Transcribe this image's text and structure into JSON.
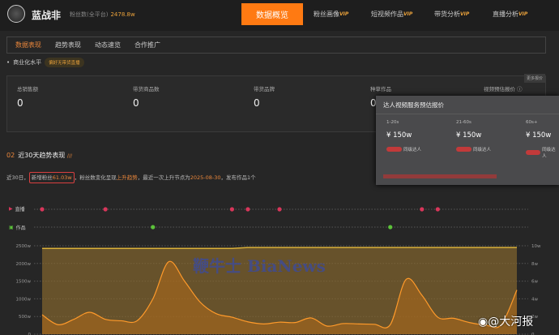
{
  "header": {
    "name": "蓝战非",
    "fans_label": "粉丝数(全平台)",
    "fans_value": "2478.8w",
    "nav": [
      {
        "label": "数据概览"
      },
      {
        "label": "粉丝画像",
        "vip": "VIP"
      },
      {
        "label": "短视频作品",
        "vip": "VIP"
      },
      {
        "label": "带货分析",
        "vip": "VIP"
      },
      {
        "label": "直播分析",
        "vip": "VIP"
      }
    ]
  },
  "tabs": [
    "数据表现",
    "趋势表现",
    "动态速览",
    "合作推广"
  ],
  "commercial": {
    "label": "商业化水平",
    "badge": "偏好无带货直播"
  },
  "stats": {
    "more": "更多报价",
    "items": [
      {
        "label": "总销售额",
        "value": "0"
      },
      {
        "label": "带货商品数",
        "value": "0"
      },
      {
        "label": "带货品牌",
        "value": "0"
      },
      {
        "label": "种草作品",
        "value": "0"
      },
      {
        "label": "视频预估报价 ⓘ"
      }
    ]
  },
  "popup": {
    "title": "达人视频服务预估报价",
    "cols": [
      {
        "dur": "1-20s",
        "price": "¥ 150w",
        "peer": "同级达人"
      },
      {
        "dur": "21-60s",
        "price": "¥ 150w",
        "peer": "同级达人"
      },
      {
        "dur": "60s+",
        "price": "¥ 150w",
        "peer": "同级达人"
      }
    ],
    "accent": "#c23a3a"
  },
  "section": {
    "num": "02",
    "title": "近30天趋势表现",
    "mark": "///"
  },
  "desc": {
    "p1": "近30日，",
    "hl_a": "新增粉丝",
    "hl_b": "61.03w",
    "p2": "，粉丝数变化呈现",
    "trend": "上升趋势",
    "p3": "，最近一次上升节点为",
    "date": "2025-08-30",
    "p4": "，发布作品1个"
  },
  "tracks": {
    "live": "直播",
    "works": "作品"
  },
  "watermark": "鞭牛士 BiaNews",
  "weibo": "@大河报",
  "colors": {
    "accent": "#ff7a12",
    "line": "#ff9a2a",
    "live": "#d8365a",
    "works": "#5cc23a"
  },
  "chart_data": {
    "type": "line",
    "yleft_ticks": [
      "0",
      "500w",
      "1000w",
      "1500w",
      "2000w",
      "2500w"
    ],
    "ylim_left": [
      0,
      2500
    ],
    "yright_ticks": [
      "0",
      "2w",
      "4w",
      "6w",
      "8w",
      "10w"
    ],
    "ylim_right": [
      0,
      10
    ],
    "x": [
      0,
      1,
      2,
      3,
      4,
      5,
      6,
      7,
      8,
      9,
      10,
      11,
      12,
      13,
      14,
      15,
      16,
      17,
      18,
      19,
      20,
      21,
      22,
      23,
      24,
      25,
      26,
      27,
      28,
      29,
      30
    ],
    "series": [
      {
        "axis": "left",
        "values": [
          550,
          270,
          420,
          620,
          420,
          380,
          380,
          1000,
          2050,
          1500,
          900,
          580,
          480,
          350,
          290,
          340,
          330,
          460,
          230,
          300,
          290,
          280,
          270,
          1550,
          1100,
          480,
          450,
          330,
          260,
          260,
          1250
        ]
      },
      {
        "axis": "right",
        "values": [
          9.7,
          9.7,
          9.7,
          9.7,
          9.7,
          9.7,
          9.7,
          9.7,
          9.7,
          9.7,
          9.7,
          9.7,
          9.7,
          9.8,
          9.8,
          9.8,
          9.8,
          9.8,
          9.8,
          9.8,
          9.8,
          9.8,
          9.8,
          9.8,
          9.8,
          9.8,
          9.8,
          9.8,
          9.8,
          9.8,
          9.8
        ]
      }
    ],
    "live_days": [
      0,
      4,
      12,
      13,
      15,
      24,
      25
    ],
    "works_days": [
      7,
      22
    ],
    "grid": true
  }
}
